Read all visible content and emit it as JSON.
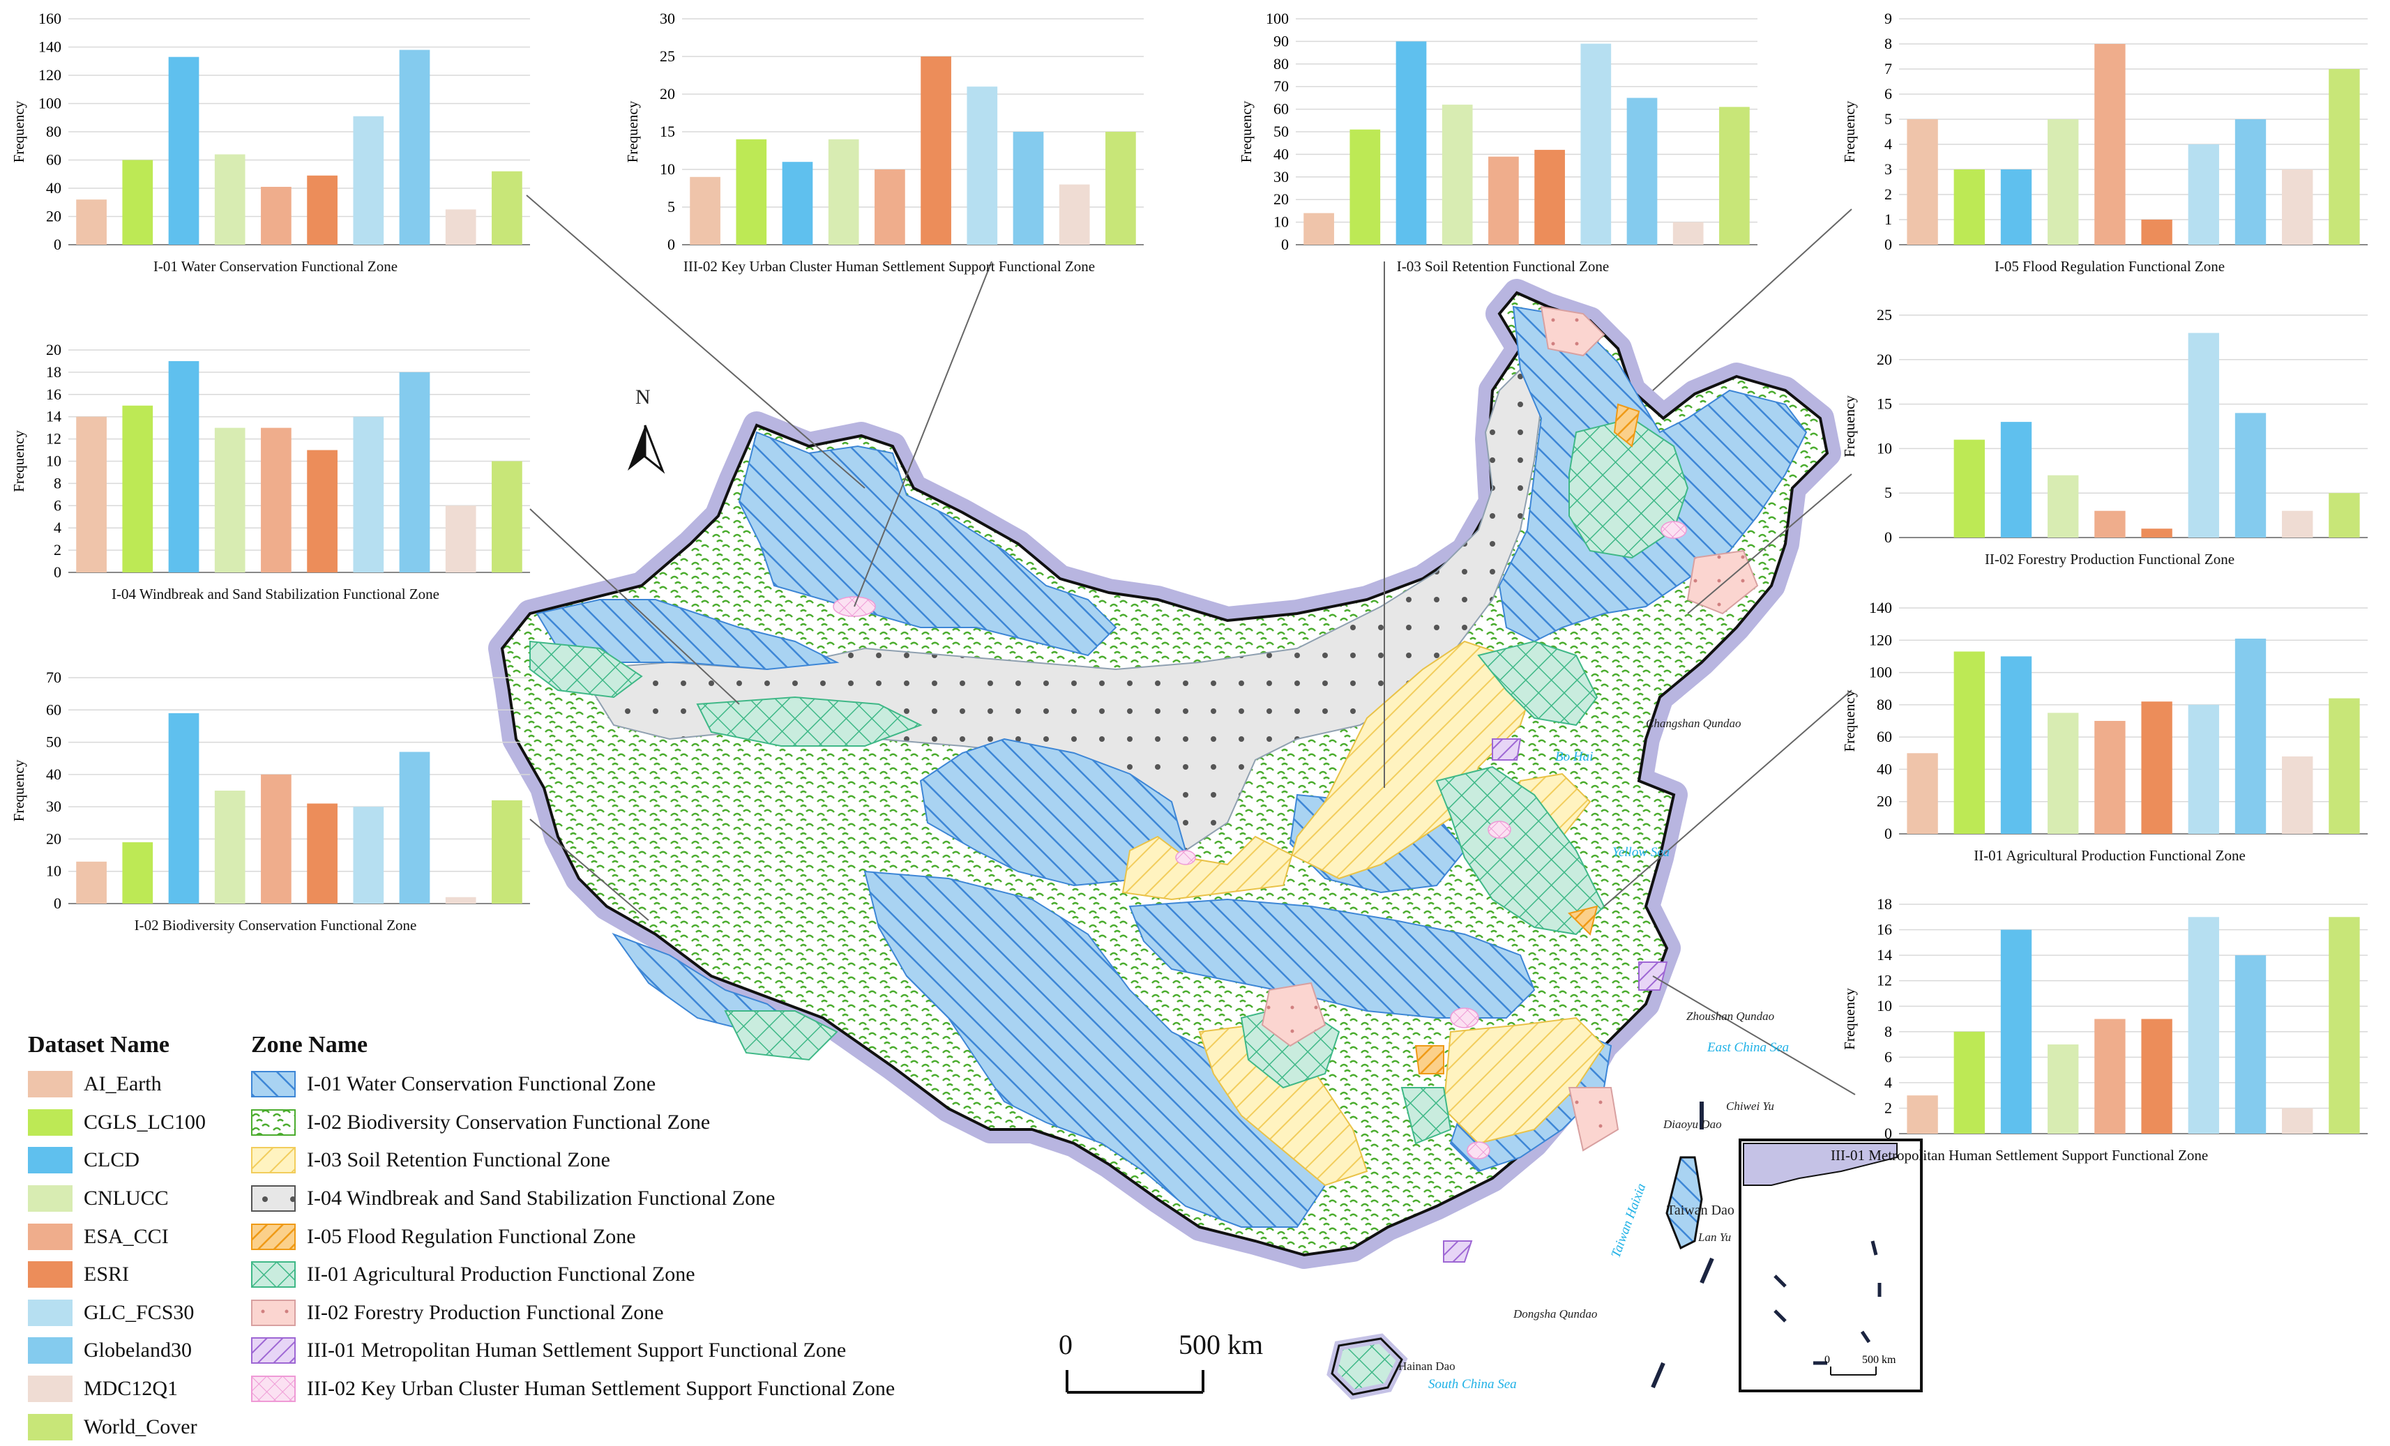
{
  "datasets": [
    {
      "name": "AI_Earth",
      "color": "#efc4aa"
    },
    {
      "name": "CGLS_LC100",
      "color": "#bde955"
    },
    {
      "name": "CLCD",
      "color": "#5fc0ee"
    },
    {
      "name": "CNLUCC",
      "color": "#d8ecb2"
    },
    {
      "name": "ESA_CCI",
      "color": "#efad8c"
    },
    {
      "name": "ESRI",
      "color": "#ec8d5a"
    },
    {
      "name": "GLC_FCS30",
      "color": "#b6dff1"
    },
    {
      "name": "Globeland30",
      "color": "#84cbee"
    },
    {
      "name": "MDC12Q1",
      "color": "#efdcd3"
    },
    {
      "name": "World_Cover",
      "color": "#c8e678"
    }
  ],
  "chart_data": [
    {
      "type": "bar",
      "title": "I-01 Water Conservation Functional Zone",
      "ylabel": "Frequency",
      "ylim": [
        0,
        160
      ],
      "yticks": [
        0,
        20,
        40,
        60,
        80,
        100,
        120,
        140,
        160
      ],
      "values": [
        32,
        60,
        133,
        64,
        41,
        49,
        91,
        138,
        25,
        52
      ]
    },
    {
      "type": "bar",
      "title": "III-02 Key Urban Cluster Human Settlement Support Functional Zone",
      "ylabel": "Frequency",
      "ylim": [
        0,
        30
      ],
      "yticks": [
        0,
        5,
        10,
        15,
        20,
        25,
        30
      ],
      "values": [
        9,
        14,
        11,
        14,
        10,
        25,
        21,
        15,
        8,
        15
      ]
    },
    {
      "type": "bar",
      "title": "I-03 Soil Retention Functional Zone",
      "ylabel": "Frequency",
      "ylim": [
        0,
        100
      ],
      "yticks": [
        0,
        10,
        20,
        30,
        40,
        50,
        60,
        70,
        80,
        90,
        100
      ],
      "values": [
        14,
        51,
        90,
        62,
        39,
        42,
        89,
        65,
        10,
        61
      ]
    },
    {
      "type": "bar",
      "title": "I-05 Flood Regulation Functional Zone",
      "ylabel": "Frequency",
      "ylim": [
        0,
        9
      ],
      "yticks": [
        0,
        1,
        2,
        3,
        4,
        5,
        6,
        7,
        8,
        9
      ],
      "values": [
        5,
        3,
        3,
        5,
        8,
        1,
        4,
        5,
        3,
        7
      ]
    },
    {
      "type": "bar",
      "title": "I-04 Windbreak and Sand Stabilization Functional Zone",
      "ylabel": "Frequency",
      "ylim": [
        0,
        20
      ],
      "yticks": [
        0,
        2,
        4,
        6,
        8,
        10,
        12,
        14,
        16,
        18,
        20
      ],
      "values": [
        14,
        15,
        19,
        13,
        13,
        11,
        14,
        18,
        6,
        10
      ]
    },
    {
      "type": "bar",
      "title": "II-02 Forestry Production Functional Zone",
      "ylabel": "Frequency",
      "ylim": [
        0,
        25
      ],
      "yticks": [
        0,
        5,
        10,
        15,
        20,
        25
      ],
      "values": [
        0,
        11,
        13,
        7,
        3,
        1,
        23,
        14,
        3,
        5
      ]
    },
    {
      "type": "bar",
      "title": "II-01 Agricultural Production Functional Zone",
      "ylabel": "Frequency",
      "ylim": [
        0,
        140
      ],
      "yticks": [
        0,
        20,
        40,
        60,
        80,
        100,
        120,
        140
      ],
      "values": [
        50,
        113,
        110,
        75,
        70,
        82,
        80,
        121,
        48,
        84
      ]
    },
    {
      "type": "bar",
      "title": "I-02 Biodiversity Conservation Functional Zone",
      "ylabel": "Frequency",
      "ylim": [
        0,
        70
      ],
      "yticks": [
        0,
        10,
        20,
        30,
        40,
        50,
        60,
        70
      ],
      "values": [
        13,
        19,
        59,
        35,
        40,
        31,
        30,
        47,
        2,
        32
      ]
    },
    {
      "type": "bar",
      "title": "III-01 Metropolitan Human Settlement Support Functional Zone",
      "ylabel": "Frequency",
      "ylim": [
        0,
        18
      ],
      "yticks": [
        0,
        2,
        4,
        6,
        8,
        10,
        12,
        14,
        16,
        18
      ],
      "values": [
        3,
        8,
        16,
        7,
        9,
        9,
        17,
        14,
        2,
        17
      ]
    }
  ],
  "legend": {
    "dataset_title": "Dataset Name",
    "zone_title": "Zone Name",
    "zones": [
      {
        "label": "I-01 Water Conservation Functional Zone",
        "pattern": "water"
      },
      {
        "label": "I-02 Biodiversity Conservation Functional Zone",
        "pattern": "bio"
      },
      {
        "label": "I-03 Soil Retention Functional Zone",
        "pattern": "soil"
      },
      {
        "label": "I-04 Windbreak and Sand Stabilization Functional Zone",
        "pattern": "wind"
      },
      {
        "label": "I-05 Flood Regulation Functional Zone",
        "pattern": "flood"
      },
      {
        "label": "II-01 Agricultural Production Functional Zone",
        "pattern": "agri"
      },
      {
        "label": "II-02 Forestry Production Functional Zone",
        "pattern": "forest"
      },
      {
        "label": "III-01 Metropolitan Human Settlement Support Functional Zone",
        "pattern": "metro"
      },
      {
        "label": "III-02 Key Urban Cluster Human Settlement Support Functional Zone",
        "pattern": "urban"
      }
    ]
  },
  "map": {
    "north_label": "N",
    "scale_zero": "0",
    "scale_label": "500 km",
    "inset_scale_zero": "0",
    "inset_scale_label": "500 km",
    "seas": [
      "Bo Hai",
      "Yellow Sea",
      "East China Sea",
      "South China Sea",
      "Taiwan Haixia"
    ],
    "places": [
      "Changshan Qundao",
      "Zhoushan Qundao",
      "Chiwei Yu",
      "Diaoyu Dao",
      "Taiwan Dao",
      "Lan Yu",
      "Dongsha Qundao",
      "Hainan Dao"
    ]
  }
}
